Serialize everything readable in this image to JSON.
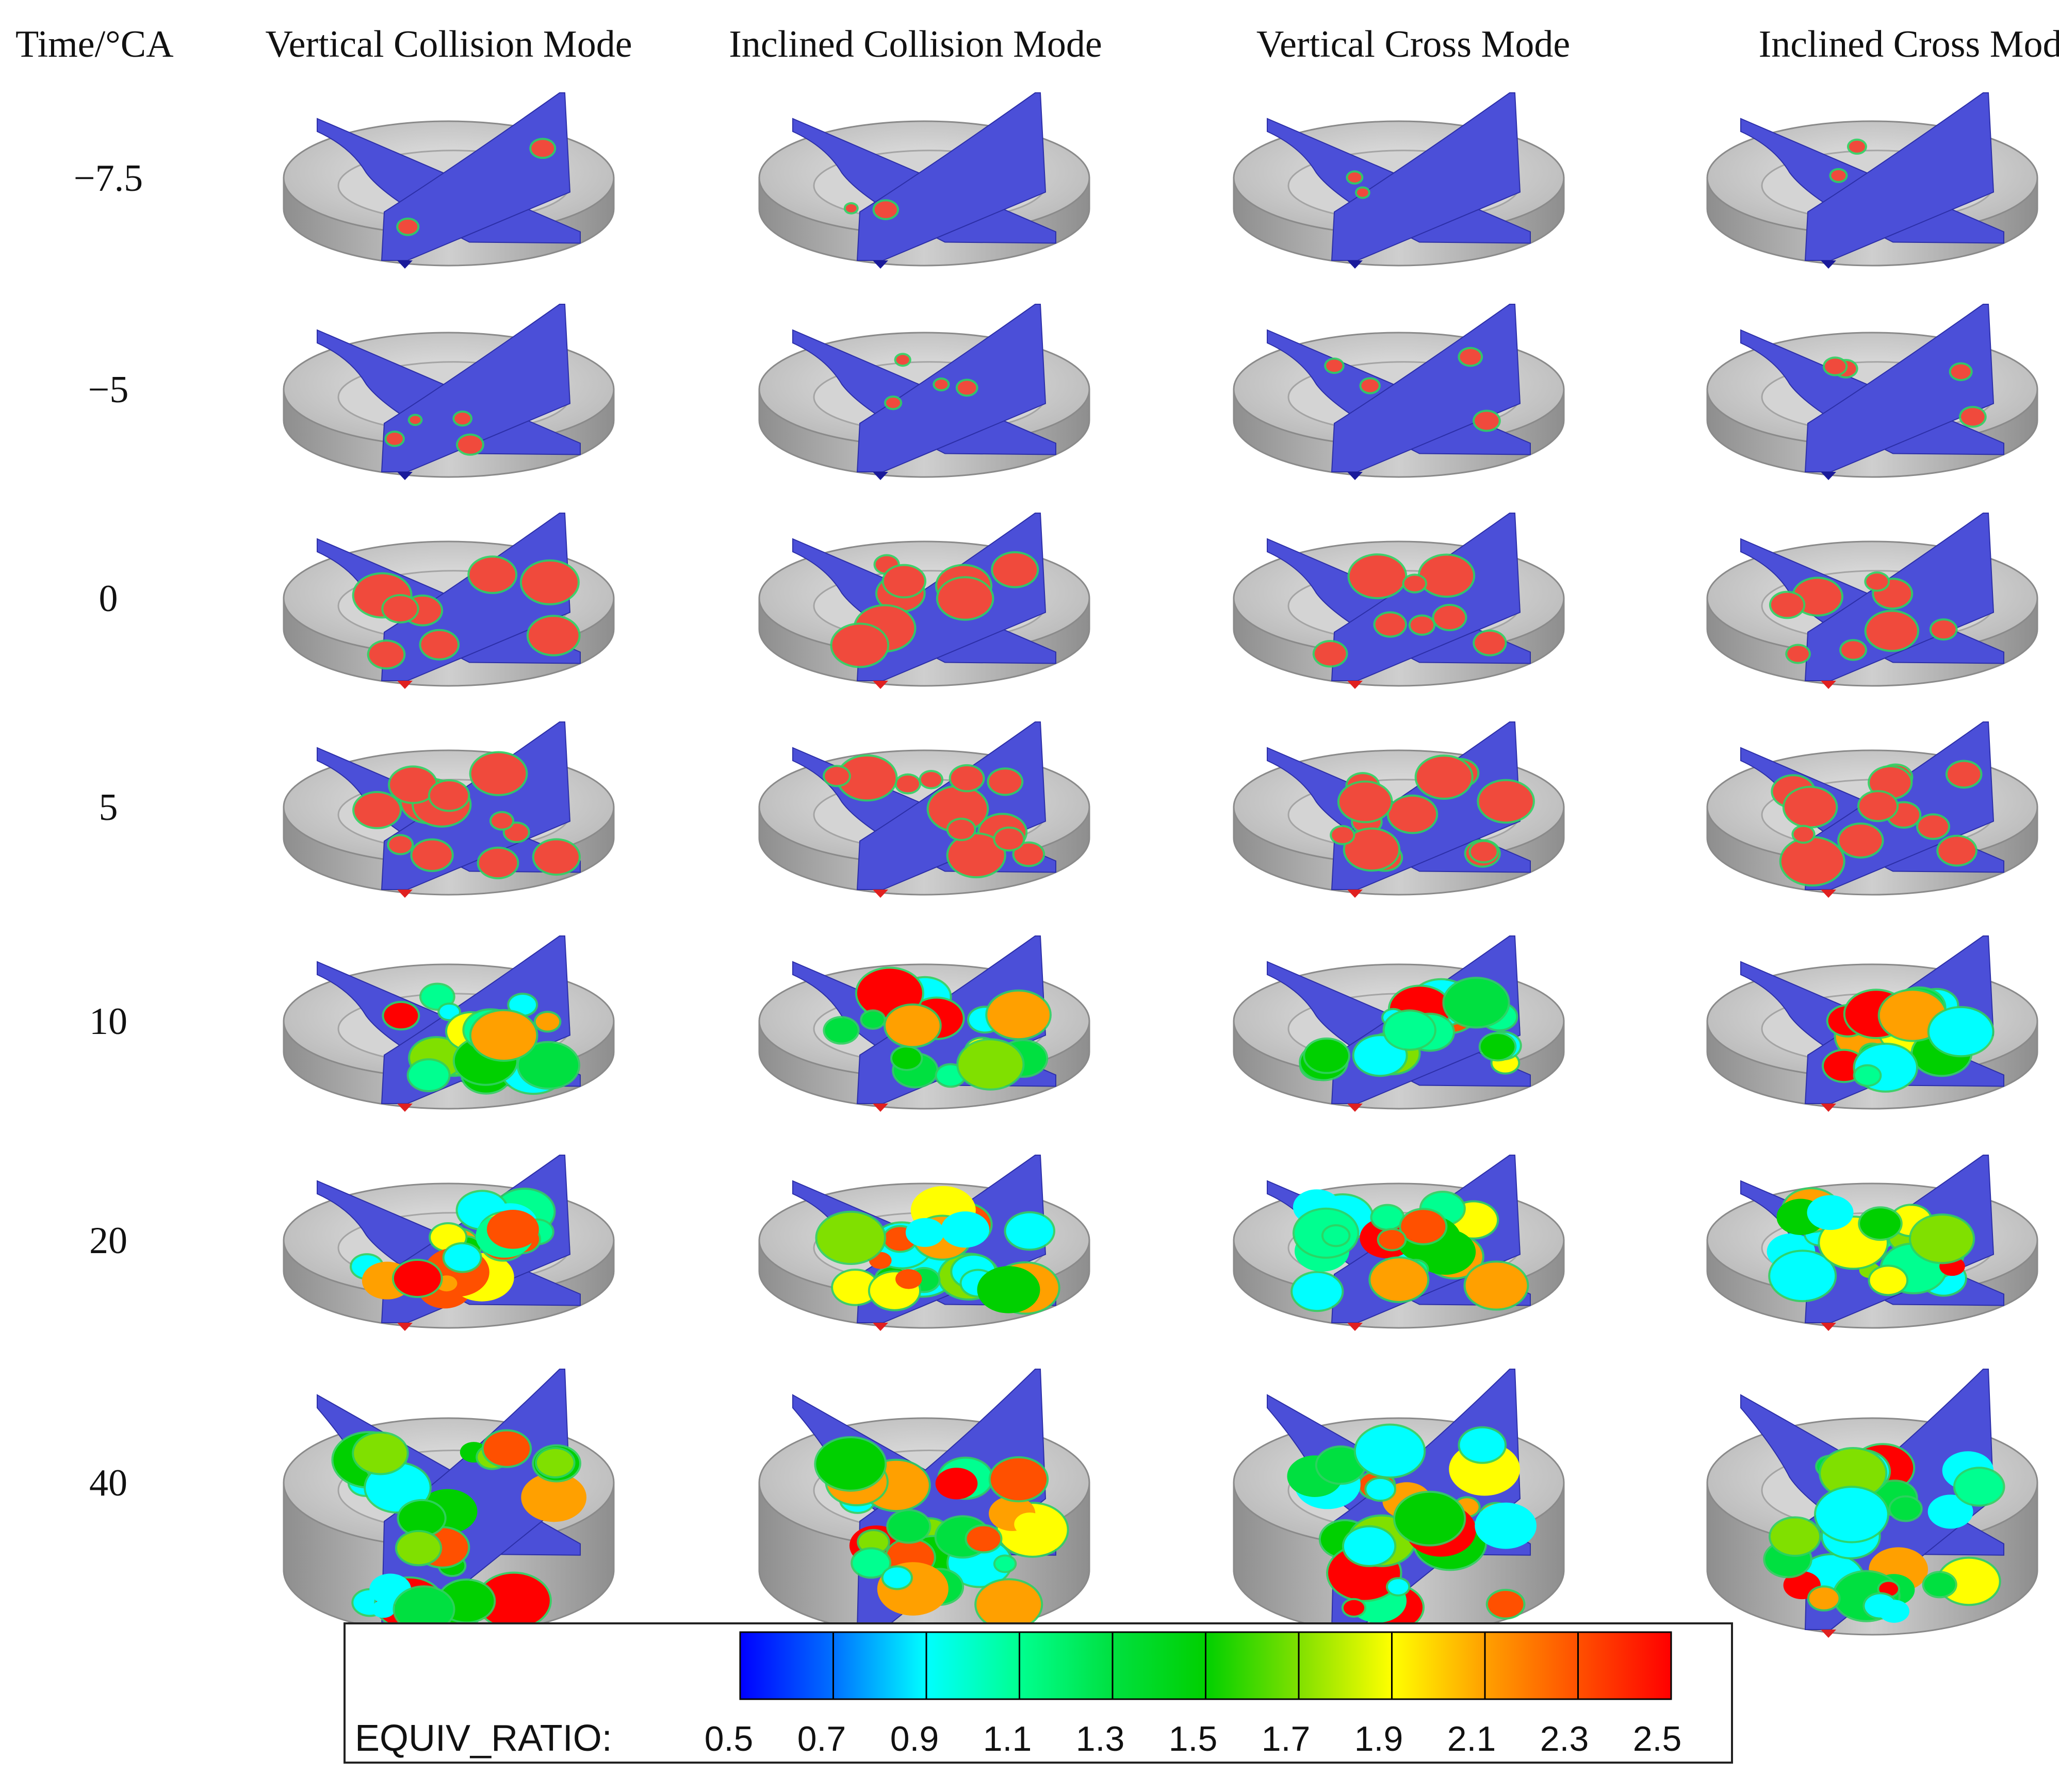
{
  "header": {
    "time_label": "Time/°CA",
    "modes": [
      "Vertical Collision Mode",
      "Inclined Collision Mode",
      "Vertical Cross Mode",
      "Inclined Cross Mode"
    ]
  },
  "rows": [
    "−7.5",
    "−5",
    "0",
    "5",
    "10",
    "20",
    "40"
  ],
  "colorbar": {
    "label": "EQUIV_RATIO:",
    "ticks": [
      "0.5",
      "0.7",
      "0.9",
      "1.1",
      "1.3",
      "1.5",
      "1.7",
      "1.9",
      "2.1",
      "2.3",
      "2.5"
    ],
    "stops": [
      "#0000ff",
      "#0070ff",
      "#00ffff",
      "#00ff90",
      "#00e040",
      "#00d000",
      "#80e000",
      "#ffff00",
      "#ffa000",
      "#ff5000",
      "#ff0000"
    ]
  },
  "colors": {
    "piston": "#c6c6c6",
    "piston_shade": "#9a9a9a",
    "lean_plane": "#4b4fd8",
    "rich_spot": "#f04a3c",
    "rim_green": "#30d060"
  }
}
